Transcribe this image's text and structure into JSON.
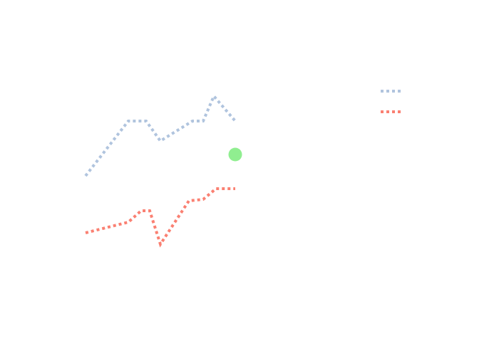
{
  "chart_data": {
    "type": "line",
    "xlim": [
      -2,
      42
    ],
    "ylim": [
      0,
      30
    ],
    "grid": false,
    "legend": "top-right",
    "series": [
      {
        "color": "#b0c4de",
        "mode": "lines",
        "dash": "dot",
        "showlegend": true,
        "x": [
          2,
          8,
          10.5,
          12.5,
          17,
          18.5,
          20,
          23
        ],
        "values": [
          15.3,
          23,
          23,
          20.2,
          23,
          23,
          26.5,
          23
        ]
      },
      {
        "color": "#fa8072",
        "mode": "lines",
        "dash": "dot",
        "showlegend": true,
        "x": [
          2,
          8,
          9.8,
          11,
          12.5,
          16.5,
          18.5,
          20.3,
          23
        ],
        "values": [
          7.3,
          8.8,
          10.4,
          10.4,
          5.7,
          11.8,
          12,
          13.5,
          13.5
        ]
      },
      {
        "color": "#90ee90",
        "mode": "markers",
        "showlegend": false,
        "x": [
          23
        ],
        "values": [
          18.3
        ]
      }
    ]
  }
}
